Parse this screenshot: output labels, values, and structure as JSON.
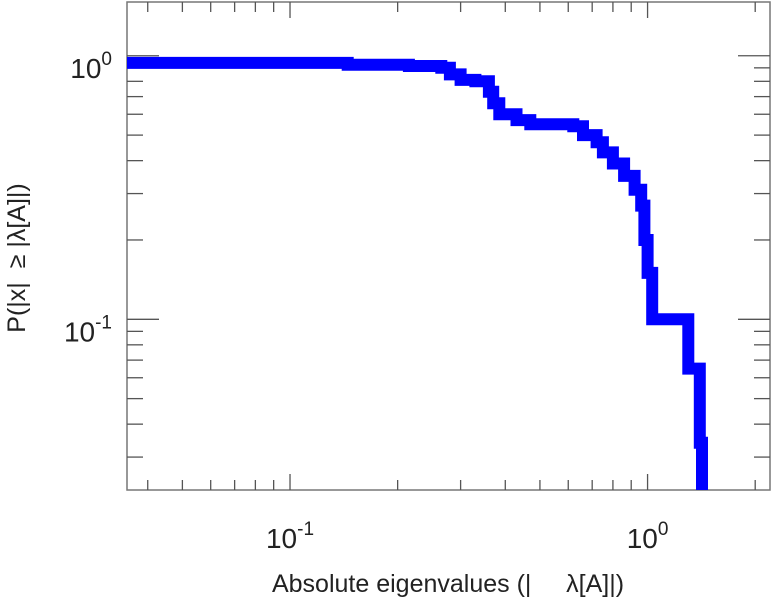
{
  "chart_data": {
    "type": "line",
    "step": true,
    "xlabel": "Absolute eigenvalues (|     λ[A]|)",
    "ylabel": "P(|x|  ≥ |λ[A]|)",
    "x_scale": "log",
    "y_scale": "log",
    "xlim": [
      0.035,
      2.2
    ],
    "ylim": [
      0.0225,
      1.6
    ],
    "grid": false,
    "x_ticks": [
      {
        "value": 0.1,
        "base": "10",
        "exp": "-1"
      },
      {
        "value": 1,
        "base": "10",
        "exp": "0"
      }
    ],
    "y_ticks": [
      {
        "value": 0.1,
        "base": "10",
        "exp": "-1"
      },
      {
        "value": 1,
        "base": "10",
        "exp": "0"
      }
    ],
    "series": [
      {
        "color": "#0000ff",
        "x": [
          0.035,
          0.145,
          0.215,
          0.265,
          0.28,
          0.3,
          0.33,
          0.36,
          0.37,
          0.385,
          0.43,
          0.47,
          0.62,
          0.66,
          0.72,
          0.75,
          0.8,
          0.86,
          0.92,
          0.96,
          0.98,
          1.0,
          1.03,
          1.3,
          1.4,
          1.42
        ],
        "y": [
          0.94,
          0.925,
          0.915,
          0.9,
          0.85,
          0.81,
          0.8,
          0.73,
          0.66,
          0.6,
          0.57,
          0.55,
          0.54,
          0.5,
          0.47,
          0.43,
          0.39,
          0.35,
          0.31,
          0.27,
          0.2,
          0.15,
          0.1,
          0.065,
          0.034,
          0.0225
        ]
      }
    ]
  }
}
